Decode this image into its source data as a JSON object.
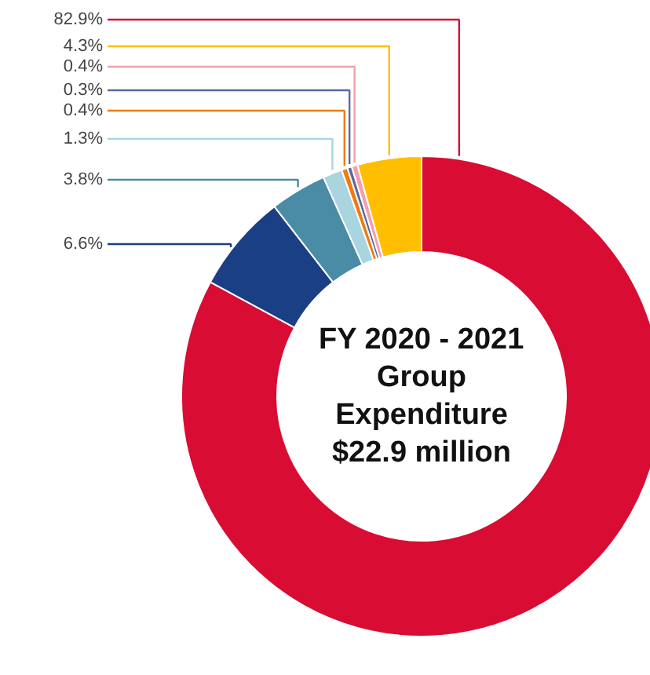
{
  "chart_data": {
    "type": "donut",
    "title": "FY 2020 - 2021\nGroup\nExpenditure\n$22.9 million",
    "categories": [
      null,
      null,
      null,
      null,
      null,
      null,
      null,
      null
    ],
    "values": [
      82.9,
      6.6,
      3.8,
      1.3,
      0.4,
      0.3,
      0.4,
      4.3
    ],
    "colors": [
      "#d90c33",
      "#1a3f84",
      "#4a8ba5",
      "#a8d5df",
      "#f07a10",
      "#5a6aa0",
      "#f4a0ac",
      "#ffbf00"
    ],
    "value_labels": [
      "82.9%",
      "6.6%",
      "3.8%",
      "1.3%",
      "0.4%",
      "0.3%",
      "0.4%",
      "4.3%"
    ]
  }
}
